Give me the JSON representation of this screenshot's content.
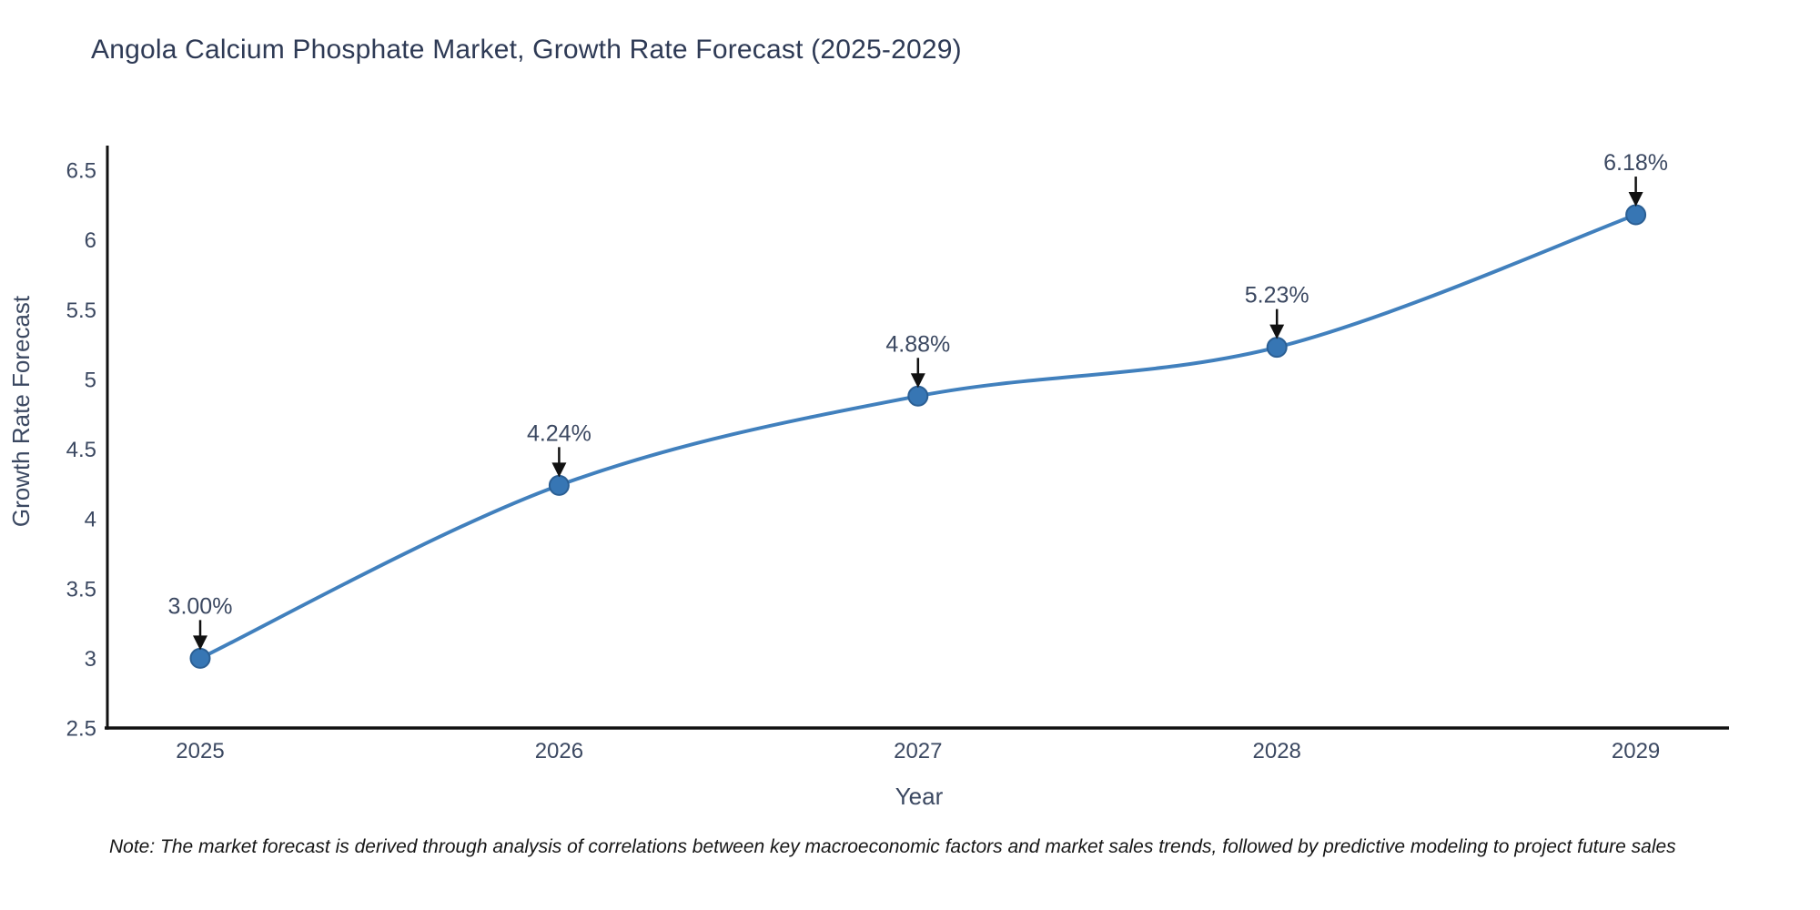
{
  "title": "Angola Calcium Phosphate Market, Growth Rate Forecast (2025-2029)",
  "note": "Note: The market forecast is derived through analysis of correlations between key macroeconomic factors and market sales trends, followed by predictive modeling to project future sales",
  "chart_data": {
    "type": "line",
    "title": "Angola Calcium Phosphate Market, Growth Rate Forecast (2025-2029)",
    "x": [
      2025,
      2026,
      2027,
      2028,
      2029
    ],
    "series": [
      {
        "name": "Growth Rate Forecast",
        "values": [
          3.0,
          4.24,
          4.88,
          5.23,
          6.18
        ]
      }
    ],
    "point_labels": [
      "3.00%",
      "4.24%",
      "4.88%",
      "5.23%",
      "6.18%"
    ],
    "xlabel": "Year",
    "ylabel": "Growth Rate Forecast",
    "ylim": [
      2.5,
      6.5
    ],
    "yticks": [
      2.5,
      3,
      3.5,
      4,
      4.5,
      5,
      5.5,
      6,
      6.5
    ],
    "ytick_labels": [
      "2.5",
      "3",
      "3.5",
      "4",
      "4.5",
      "5",
      "5.5",
      "6",
      "6.5"
    ],
    "xtick_labels": [
      "2025",
      "2026",
      "2027",
      "2028",
      "2029"
    ],
    "grid": false,
    "legend_position": "none",
    "line_shape": "spline",
    "marker": "circle",
    "annotation_arrows": true,
    "colors": {
      "line": "#4180bd",
      "marker_fill": "#3776b4",
      "marker_edge": "#2b5f94",
      "axis_line": "#111111",
      "tick_text": "#3b4861",
      "title_text": "#2e3a55",
      "annotation_text": "#3b4861",
      "arrow": "#111111",
      "note_text": "#161616",
      "background": "#ffffff"
    }
  }
}
